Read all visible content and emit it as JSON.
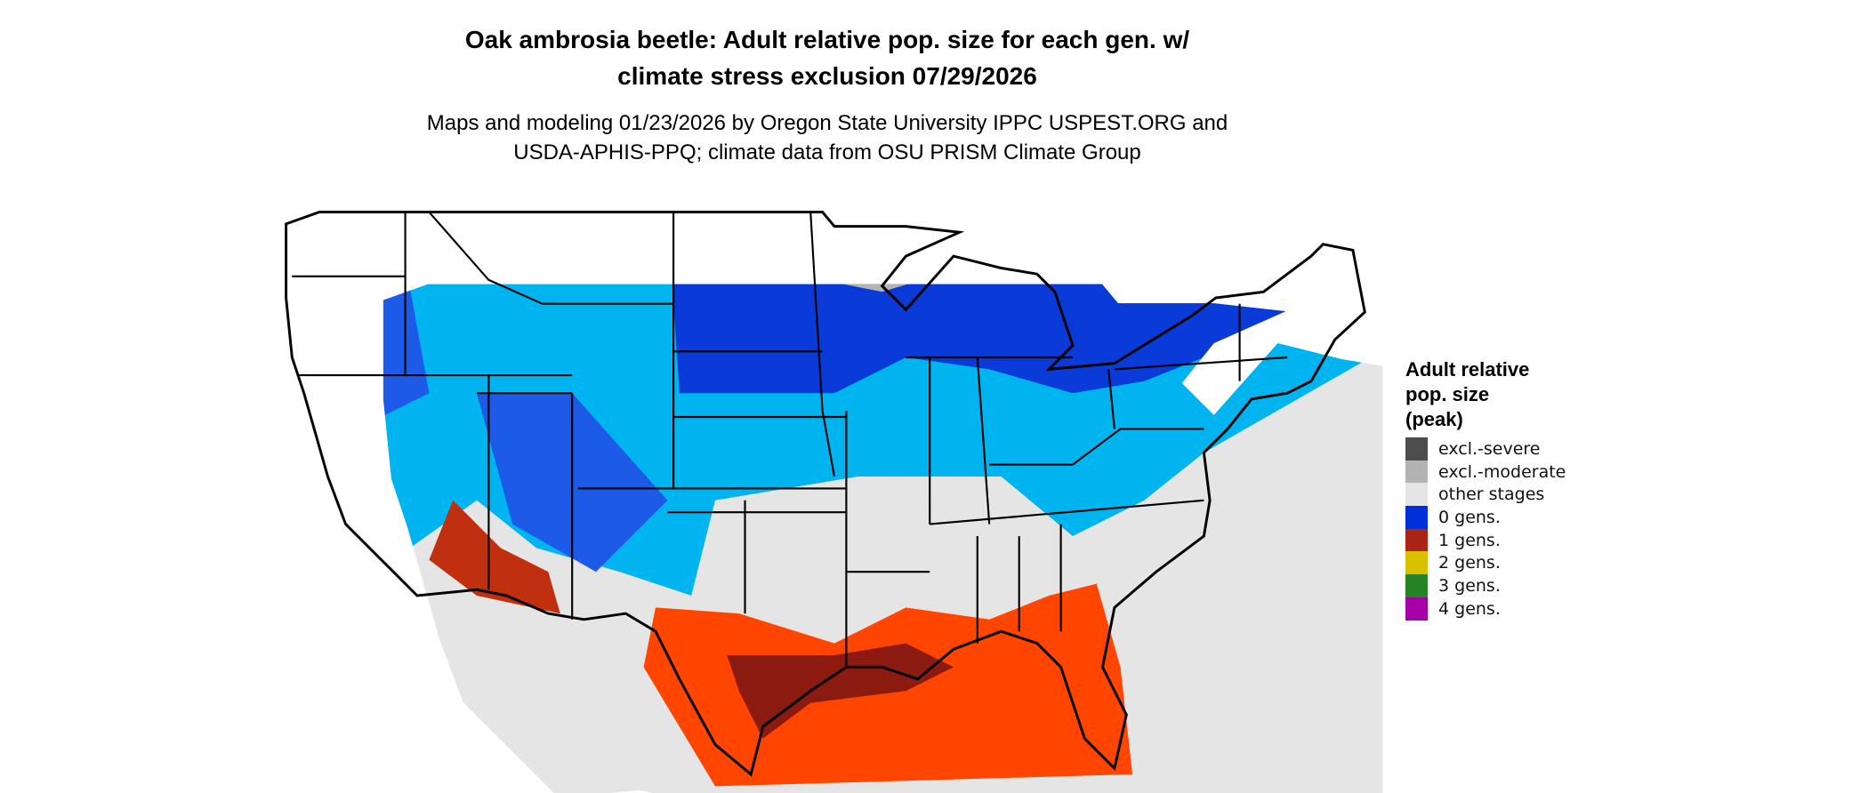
{
  "title": [
    "Oak ambrosia beetle: Adult relative pop. size for each gen. w/",
    "climate stress exclusion 07/29/2026"
  ],
  "subtitle": [
    "Maps and modeling 01/23/2026 by Oregon State University IPPC USPEST.ORG and",
    "USDA-APHIS-PPQ; climate data from OSU PRISM Climate Group"
  ],
  "legend": {
    "title": [
      "Adult relative",
      "pop. size",
      "(peak)"
    ],
    "items": [
      {
        "label": "excl.-severe",
        "color": "#4d4d4d"
      },
      {
        "label": "excl.-moderate",
        "color": "#b3b3b3"
      },
      {
        "label": "other stages",
        "color": "#e5e5e5"
      },
      {
        "label": "0 gens.",
        "color": "#0030d8"
      },
      {
        "label": "1 gens.",
        "color": "#aa2515"
      },
      {
        "label": "2 gens.",
        "color": "#d9c000"
      },
      {
        "label": "3 gens.",
        "color": "#268426"
      },
      {
        "label": "4 gens.",
        "color": "#a500a5"
      }
    ]
  },
  "map_colors": {
    "light_blue": "#00b4f0",
    "orange": "#ff4500"
  }
}
